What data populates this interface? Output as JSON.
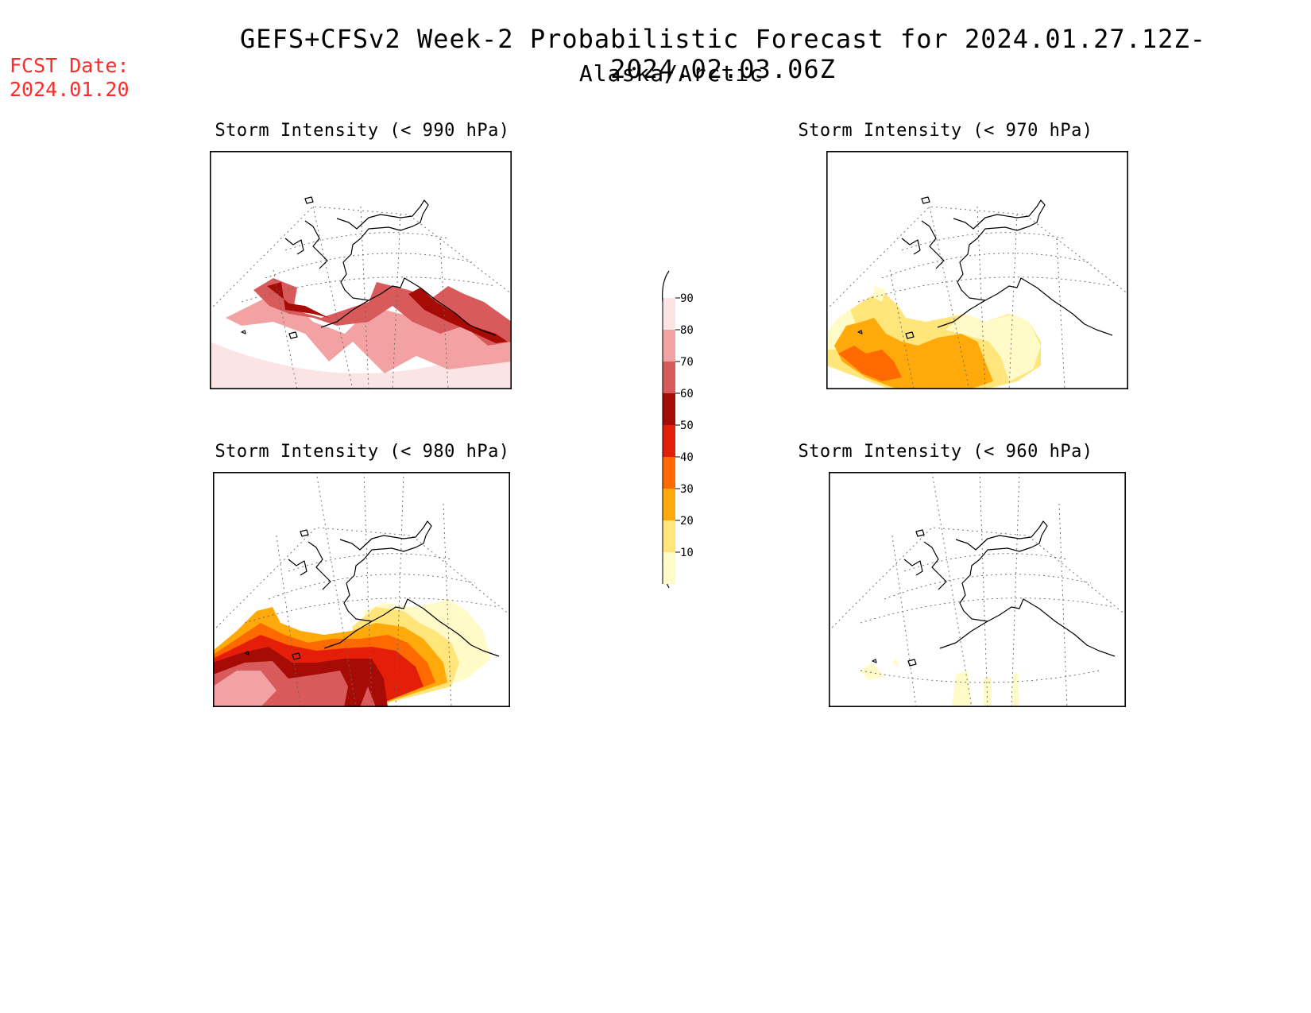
{
  "header": {
    "title": "GEFS+CFSv2 Week-2 Probabilistic Forecast for 2024.01.27.12Z-2024.02.03.06Z",
    "subtitle": "Alaska/Arctic",
    "fcst_label": "FCST Date:",
    "fcst_date": "2024.01.20"
  },
  "colors": {
    "fcst_text": "#ff2a2a",
    "scale": [
      "#fffbc8",
      "#ffe57a",
      "#ffa90a",
      "#ff6a00",
      "#e51e0a",
      "#a60c05",
      "#d95a5a",
      "#f2a2a2",
      "#fde4e4"
    ]
  },
  "legend": {
    "labels": [
      "10",
      "20",
      "30",
      "40",
      "50",
      "60",
      "70",
      "80",
      "90"
    ]
  },
  "panels": [
    {
      "id": "p990",
      "title": "Storm Intensity (< 990 hPa)"
    },
    {
      "id": "p970",
      "title": "Storm Intensity (< 970 hPa)"
    },
    {
      "id": "p980",
      "title": "Storm Intensity (< 980 hPa)"
    },
    {
      "id": "p960",
      "title": "Storm Intensity (< 960 hPa)"
    }
  ]
}
